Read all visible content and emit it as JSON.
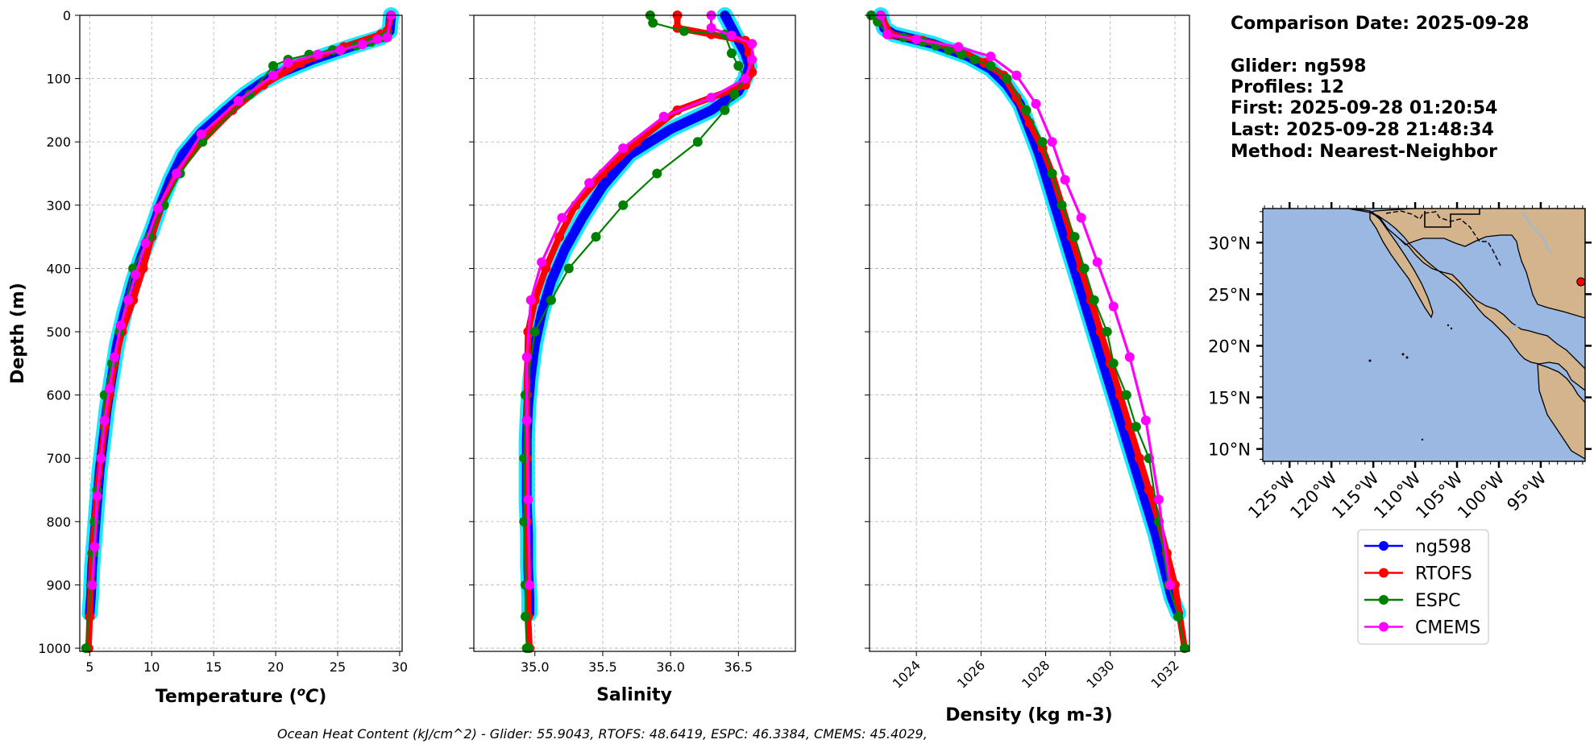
{
  "chart_data": [
    {
      "type": "line",
      "xlabel": "Temperature (°C)",
      "ylabel": "Depth (m)",
      "xlim": [
        4.2,
        30.2
      ],
      "ylim": [
        1005,
        0
      ],
      "xticks": [
        5,
        10,
        15,
        20,
        25,
        30
      ],
      "yticks": [
        0,
        100,
        200,
        300,
        400,
        500,
        600,
        700,
        800,
        900,
        1000
      ],
      "grid": true,
      "series": [
        {
          "name": "ng598",
          "color": "#0000ff",
          "markers": false,
          "x": [
            29.3,
            29.2,
            28.5,
            26.0,
            23.0,
            20.5,
            19.0,
            17.5,
            16.0,
            14.0,
            12.5,
            11.5,
            10.7,
            10.0,
            9.2,
            8.5,
            7.8,
            7.2,
            6.8,
            6.4,
            6.1,
            5.8,
            5.6,
            5.4,
            5.2,
            5.1,
            5.0
          ],
          "y": [
            0,
            25,
            35,
            50,
            70,
            90,
            105,
            125,
            150,
            185,
            220,
            260,
            300,
            340,
            380,
            420,
            470,
            520,
            570,
            620,
            670,
            720,
            770,
            820,
            870,
            920,
            945
          ]
        },
        {
          "name": "RTOFS",
          "color": "#ff0000",
          "markers": true,
          "x": [
            29.3,
            29.0,
            28.5,
            25.5,
            22.0,
            19.0,
            16.5,
            14.0,
            12.0,
            10.8,
            10.0,
            9.3,
            8.5,
            7.6,
            7.0,
            6.6,
            6.2,
            5.9,
            5.6,
            5.4,
            5.2,
            5.1,
            5.0,
            4.9
          ],
          "y": [
            0,
            25,
            30,
            50,
            75,
            110,
            150,
            200,
            250,
            300,
            350,
            400,
            450,
            500,
            550,
            600,
            650,
            700,
            750,
            800,
            850,
            900,
            950,
            1000
          ]
        },
        {
          "name": "ESPC",
          "color": "#008000",
          "markers": true,
          "x": [
            29.0,
            28.7,
            27.7,
            26.5,
            24.6,
            22.7,
            21.0,
            19.8,
            17.9,
            14.1,
            12.3,
            11.0,
            9.8,
            8.5,
            7.4,
            6.8,
            6.2,
            5.9,
            5.6,
            5.4,
            5.3,
            5.1,
            4.7
          ],
          "y": [
            31,
            35,
            42,
            48,
            55,
            62,
            70,
            80,
            125,
            200,
            250,
            300,
            350,
            400,
            500,
            550,
            600,
            700,
            750,
            800,
            850,
            900,
            1000
          ]
        },
        {
          "name": "CMEMS",
          "color": "#ff00ff",
          "markers": true,
          "x": [
            29.3,
            29.0,
            28.2,
            27.0,
            25.2,
            23.4,
            21.0,
            19.8,
            17.0,
            14.0,
            12.0,
            10.5,
            9.5,
            8.7,
            8.1,
            7.5,
            7.0,
            6.6,
            6.2,
            5.9,
            5.6,
            5.4,
            5.2
          ],
          "y": [
            0,
            35,
            38,
            46,
            55,
            62,
            75,
            95,
            135,
            188,
            250,
            305,
            360,
            410,
            450,
            490,
            540,
            590,
            640,
            700,
            760,
            840,
            900
          ]
        }
      ]
    },
    {
      "type": "line",
      "xlabel": "Salinity",
      "xlim": [
        34.55,
        36.92
      ],
      "ylim": [
        1005,
        0
      ],
      "xticks": [
        35.0,
        35.5,
        36.0,
        36.5
      ],
      "xtick_labels": [
        "35.0",
        "35.5",
        "36.0",
        "36.5"
      ],
      "grid": true,
      "series": [
        {
          "name": "ng598",
          "color": "#0000ff",
          "markers": false,
          "x": [
            36.4,
            36.45,
            36.5,
            36.55,
            36.58,
            36.55,
            36.5,
            36.3,
            36.0,
            35.7,
            35.5,
            35.35,
            35.22,
            35.12,
            35.05,
            35.0,
            34.97,
            34.95,
            34.94,
            34.94,
            34.94,
            34.95,
            34.95,
            34.96,
            34.96
          ],
          "y": [
            0,
            20,
            40,
            60,
            80,
            100,
            120,
            150,
            180,
            220,
            270,
            320,
            370,
            420,
            470,
            520,
            570,
            620,
            670,
            720,
            770,
            820,
            870,
            920,
            945
          ]
        },
        {
          "name": "RTOFS",
          "color": "#ff0000",
          "markers": true,
          "x": [
            36.05,
            36.05,
            36.3,
            36.55,
            36.58,
            36.6,
            36.55,
            36.05,
            35.75,
            35.5,
            35.3,
            35.18,
            35.08,
            35.0,
            34.95,
            34.94,
            34.94,
            34.94,
            34.95,
            34.95,
            34.96
          ],
          "y": [
            0,
            20,
            30,
            40,
            60,
            90,
            110,
            150,
            200,
            250,
            300,
            350,
            400,
            450,
            500,
            600,
            700,
            800,
            900,
            950,
            1000
          ]
        },
        {
          "name": "ESPC",
          "color": "#008000",
          "markers": true,
          "x": [
            35.85,
            35.87,
            36.1,
            36.4,
            36.45,
            36.5,
            36.55,
            36.47,
            36.4,
            36.2,
            35.9,
            35.65,
            35.45,
            35.25,
            35.12,
            35.0,
            34.93,
            34.92,
            34.92,
            34.93,
            34.93,
            34.94,
            34.95
          ],
          "y": [
            0,
            12,
            25,
            30,
            60,
            80,
            100,
            125,
            150,
            200,
            250,
            300,
            350,
            400,
            450,
            500,
            600,
            700,
            800,
            900,
            950,
            1000,
            1000
          ]
        },
        {
          "name": "CMEMS",
          "color": "#ff00ff",
          "markers": true,
          "x": [
            36.3,
            36.3,
            36.45,
            36.6,
            36.6,
            36.55,
            36.3,
            35.95,
            35.65,
            35.4,
            35.2,
            35.05,
            34.97,
            34.94,
            34.94,
            34.95,
            34.96
          ],
          "y": [
            0,
            20,
            32,
            45,
            70,
            100,
            130,
            160,
            210,
            265,
            320,
            390,
            450,
            540,
            640,
            765,
            900
          ]
        }
      ]
    },
    {
      "type": "line",
      "xlabel": "Density (kg m-3)",
      "xlim": [
        1022.55,
        1032.45
      ],
      "ylim": [
        1005,
        0
      ],
      "xticks": [
        1024,
        1026,
        1028,
        1030,
        1032
      ],
      "grid": true,
      "series": [
        {
          "name": "ng598",
          "color": "#0000ff",
          "markers": false,
          "x": [
            1022.9,
            1023.0,
            1023.3,
            1024.5,
            1025.6,
            1026.3,
            1026.8,
            1027.2,
            1027.5,
            1027.8,
            1028.1,
            1028.4,
            1028.7,
            1029.0,
            1029.3,
            1029.6,
            1029.9,
            1030.2,
            1030.5,
            1030.8,
            1031.1,
            1031.4,
            1031.65,
            1031.9,
            1032.1
          ],
          "y": [
            0,
            20,
            30,
            45,
            65,
            85,
            110,
            140,
            180,
            220,
            270,
            320,
            370,
            420,
            470,
            520,
            570,
            620,
            670,
            720,
            770,
            820,
            870,
            920,
            945
          ]
        },
        {
          "name": "RTOFS",
          "color": "#ff0000",
          "markers": true,
          "x": [
            1022.9,
            1023.2,
            1024.2,
            1025.3,
            1026.1,
            1026.7,
            1027.1,
            1027.5,
            1027.9,
            1028.2,
            1028.5,
            1028.8,
            1029.1,
            1029.4,
            1029.7,
            1030.0,
            1030.3,
            1030.6,
            1030.9,
            1031.2,
            1031.5,
            1031.75,
            1032.0,
            1032.3
          ],
          "y": [
            0,
            30,
            40,
            55,
            75,
            95,
            130,
            170,
            210,
            250,
            300,
            350,
            400,
            450,
            500,
            550,
            600,
            650,
            700,
            750,
            800,
            850,
            900,
            1000
          ]
        },
        {
          "name": "ESPC",
          "color": "#008000",
          "markers": true,
          "x": [
            1022.6,
            1022.8,
            1023.1,
            1023.6,
            1024.2,
            1024.6,
            1025.0,
            1025.4,
            1025.8,
            1026.3,
            1026.8,
            1027.4,
            1027.9,
            1028.2,
            1028.5,
            1028.9,
            1029.2,
            1029.5,
            1029.9,
            1030.1,
            1030.5,
            1030.8,
            1031.2,
            1031.5,
            1031.8,
            1032.1,
            1032.3
          ],
          "y": [
            0,
            10,
            30,
            35,
            42,
            48,
            55,
            62,
            70,
            80,
            100,
            150,
            200,
            250,
            300,
            350,
            400,
            450,
            500,
            550,
            600,
            650,
            700,
            800,
            900,
            950,
            1000
          ]
        },
        {
          "name": "CMEMS",
          "color": "#ff00ff",
          "markers": true,
          "x": [
            1022.9,
            1023.1,
            1024.0,
            1025.3,
            1026.3,
            1027.1,
            1027.7,
            1028.2,
            1028.6,
            1029.1,
            1029.6,
            1030.1,
            1030.6,
            1031.1,
            1031.5,
            1031.85
          ],
          "y": [
            0,
            30,
            38,
            50,
            65,
            95,
            140,
            200,
            260,
            320,
            390,
            460,
            540,
            640,
            765,
            900
          ]
        }
      ]
    }
  ],
  "info": {
    "date_line": "Comparison Date: 2025-09-28",
    "glider_line": "Glider: ng598",
    "profiles_line": "Profiles: 12",
    "first_line": "First: 2025-09-28 01:20:54",
    "last_line": "Last: 2025-09-28 21:48:34",
    "method_line": "Method: Nearest-Neighbor"
  },
  "map": {
    "lon_ticks": [
      "125°W",
      "120°W",
      "115°W",
      "110°W",
      "105°W",
      "100°W",
      "95°W"
    ],
    "lat_ticks": [
      "30°N",
      "25°N",
      "20°N",
      "15°N",
      "10°N"
    ],
    "glider_position": {
      "lon": -90.2,
      "lat": 26.2
    },
    "colors": {
      "ocean": "#9ab8e2",
      "land": "#d3b48c",
      "marker": "#ff0000"
    }
  },
  "legend": {
    "entries": [
      {
        "label": "ng598",
        "color": "#0000ff"
      },
      {
        "label": "RTOFS",
        "color": "#ff0000"
      },
      {
        "label": "ESPC",
        "color": "#008000"
      },
      {
        "label": "CMEMS",
        "color": "#ff00ff"
      }
    ]
  },
  "footer": {
    "ohc_text": "Ocean Heat Content (kJ/cm^2) - Glider: 55.9043,  RTOFS: 48.6419,  ESPC: 46.3384,  CMEMS: 45.4029,"
  }
}
